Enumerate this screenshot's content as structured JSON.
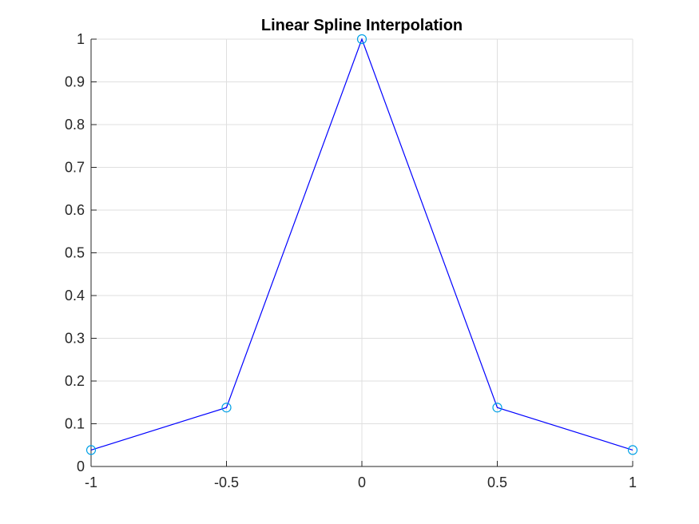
{
  "chart_data": {
    "type": "line",
    "title": "Linear Spline Interpolation",
    "xlabel": "",
    "ylabel": "",
    "xlim": [
      -1,
      1
    ],
    "ylim": [
      0,
      1
    ],
    "x_ticks": [
      -1,
      -0.5,
      0,
      0.5,
      1
    ],
    "x_tick_labels": [
      "-1",
      "-0.5",
      "0",
      "0.5",
      "1"
    ],
    "y_ticks": [
      0,
      0.1,
      0.2,
      0.3,
      0.4,
      0.5,
      0.6,
      0.7,
      0.8,
      0.9,
      1
    ],
    "y_tick_labels": [
      "0",
      "0.1",
      "0.2",
      "0.3",
      "0.4",
      "0.5",
      "0.6",
      "0.7",
      "0.8",
      "0.9",
      "1"
    ],
    "grid": true,
    "series": [
      {
        "style": "line",
        "color": "#0000ff",
        "x": [
          -1,
          -0.5,
          0,
          0.5,
          1
        ],
        "y": [
          0.0385,
          0.1379,
          1,
          0.1379,
          0.0385
        ]
      },
      {
        "style": "markers",
        "marker": "circle",
        "color": "#00a0e6",
        "x": [
          -1,
          -0.5,
          0,
          0.5,
          1
        ],
        "y": [
          0.0385,
          0.1379,
          1,
          0.1379,
          0.0385
        ]
      }
    ]
  }
}
